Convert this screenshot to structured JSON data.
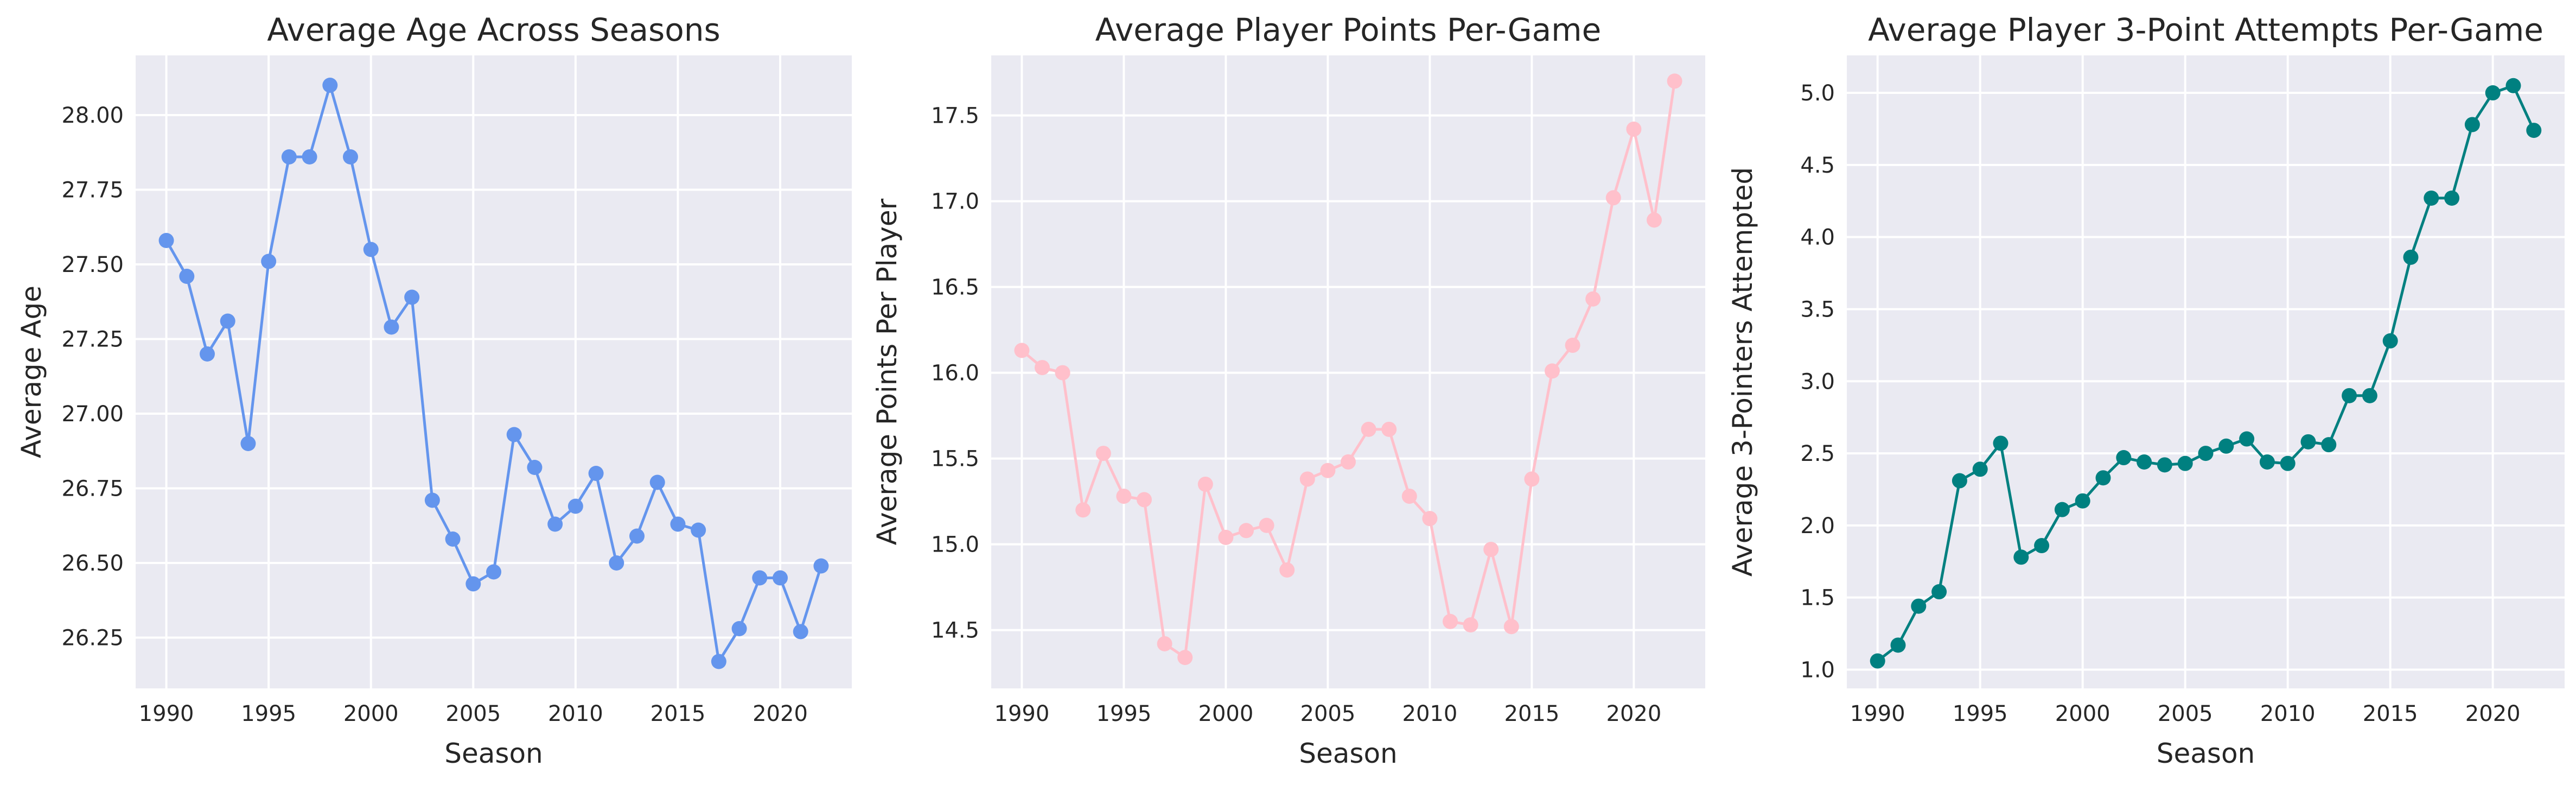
{
  "chart_data": [
    {
      "type": "line",
      "title": "Average Age Across Seasons",
      "xlabel": "Season",
      "ylabel": "Average Age",
      "xlim": [
        1988.5,
        2023.5
      ],
      "ylim": [
        26.08,
        28.2
      ],
      "xticks": [
        1990,
        1995,
        2000,
        2005,
        2010,
        2015,
        2020
      ],
      "yticks": [
        26.25,
        26.5,
        26.75,
        27.0,
        27.25,
        27.5,
        27.75,
        28.0
      ],
      "ytick_labels": [
        "26.25",
        "26.50",
        "26.75",
        "27.00",
        "27.25",
        "27.50",
        "27.75",
        "28.00"
      ],
      "grid": true,
      "color": "#6495ED",
      "x": [
        1990,
        1991,
        1992,
        1993,
        1994,
        1995,
        1996,
        1997,
        1998,
        1999,
        2000,
        2001,
        2002,
        2003,
        2004,
        2005,
        2006,
        2007,
        2008,
        2009,
        2010,
        2011,
        2012,
        2013,
        2014,
        2015,
        2016,
        2017,
        2018,
        2019,
        2020,
        2021,
        2022
      ],
      "values": [
        27.58,
        27.46,
        27.2,
        27.31,
        26.9,
        27.51,
        27.86,
        27.86,
        28.1,
        27.86,
        27.55,
        27.29,
        27.39,
        26.71,
        26.58,
        26.43,
        26.47,
        26.93,
        26.82,
        26.63,
        26.69,
        26.8,
        26.5,
        26.59,
        26.77,
        26.63,
        26.61,
        26.17,
        26.28,
        26.45,
        26.45,
        26.27,
        26.49
      ]
    },
    {
      "type": "line",
      "title": "Average Player Points Per-Game",
      "xlabel": "Season",
      "ylabel": "Average Points Per Player",
      "xlim": [
        1988.5,
        2023.5
      ],
      "ylim": [
        14.16,
        17.85
      ],
      "xticks": [
        1990,
        1995,
        2000,
        2005,
        2010,
        2015,
        2020
      ],
      "yticks": [
        14.5,
        15.0,
        15.5,
        16.0,
        16.5,
        17.0,
        17.5
      ],
      "ytick_labels": [
        "14.5",
        "15.0",
        "15.5",
        "16.0",
        "16.5",
        "17.0",
        "17.5"
      ],
      "grid": true,
      "color": "#FFC0CB",
      "x": [
        1990,
        1991,
        1992,
        1993,
        1994,
        1995,
        1996,
        1997,
        1998,
        1999,
        2000,
        2001,
        2002,
        2003,
        2004,
        2005,
        2006,
        2007,
        2008,
        2009,
        2010,
        2011,
        2012,
        2013,
        2014,
        2015,
        2016,
        2017,
        2018,
        2019,
        2020,
        2021,
        2022
      ],
      "values": [
        16.13,
        16.03,
        16.0,
        15.2,
        15.53,
        15.28,
        15.26,
        14.42,
        14.34,
        15.35,
        15.04,
        15.08,
        15.11,
        14.85,
        15.38,
        15.43,
        15.48,
        15.67,
        15.67,
        15.28,
        15.15,
        14.55,
        14.53,
        14.97,
        14.52,
        15.38,
        16.01,
        16.16,
        16.43,
        17.02,
        17.42,
        16.89,
        17.7
      ]
    },
    {
      "type": "line",
      "title": "Average Player 3-Point Attempts Per-Game",
      "xlabel": "Season",
      "ylabel": "Average 3-Pointers Attempted",
      "xlim": [
        1988.5,
        2023.5
      ],
      "ylim": [
        0.87,
        5.26
      ],
      "xticks": [
        1990,
        1995,
        2000,
        2005,
        2010,
        2015,
        2020
      ],
      "yticks": [
        1.0,
        1.5,
        2.0,
        2.5,
        3.0,
        3.5,
        4.0,
        4.5,
        5.0
      ],
      "ytick_labels": [
        "1.0",
        "1.5",
        "2.0",
        "2.5",
        "3.0",
        "3.5",
        "4.0",
        "4.5",
        "5.0"
      ],
      "grid": true,
      "color": "#008080",
      "x": [
        1990,
        1991,
        1992,
        1993,
        1994,
        1995,
        1996,
        1997,
        1998,
        1999,
        2000,
        2001,
        2002,
        2003,
        2004,
        2005,
        2006,
        2007,
        2008,
        2009,
        2010,
        2011,
        2012,
        2013,
        2014,
        2015,
        2016,
        2017,
        2018,
        2019,
        2020,
        2021,
        2022
      ],
      "values": [
        1.06,
        1.17,
        1.44,
        1.54,
        2.31,
        2.39,
        2.57,
        1.78,
        1.86,
        2.11,
        2.17,
        2.33,
        2.47,
        2.44,
        2.42,
        2.43,
        2.5,
        2.55,
        2.6,
        2.44,
        2.43,
        2.58,
        2.56,
        2.9,
        2.9,
        3.28,
        3.86,
        4.27,
        4.27,
        4.78,
        5.0,
        5.05,
        4.74
      ]
    }
  ]
}
